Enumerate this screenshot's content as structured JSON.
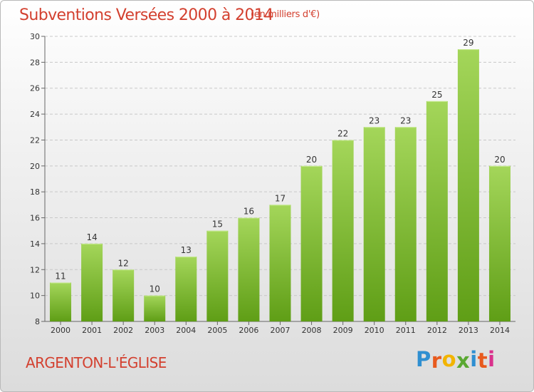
{
  "title": "Subventions Versées 2000 à 2014",
  "unit_note": "(en milliers d'€)",
  "commune": "ARGENTON-L'ÉGLISE",
  "logo": {
    "letters": [
      "P",
      "r",
      "o",
      "x",
      "i",
      "t",
      "i"
    ],
    "colors": [
      "#2f8fd1",
      "#e85a1e",
      "#f2b400",
      "#5aa832",
      "#2f8fd1",
      "#e85a1e",
      "#d9318c"
    ]
  },
  "colors": {
    "title": "#d3402f",
    "bar_top": "#a4d65a",
    "bar_bottom": "#5f9e16",
    "grid": "#c8c8c8"
  },
  "chart_data": {
    "type": "bar",
    "categories": [
      "2000",
      "2001",
      "2002",
      "2003",
      "2004",
      "2005",
      "2006",
      "2007",
      "2008",
      "2009",
      "2010",
      "2011",
      "2012",
      "2013",
      "2014"
    ],
    "values": [
      11,
      14,
      12,
      10,
      13,
      15,
      16,
      17,
      20,
      22,
      23,
      23,
      25,
      29,
      20
    ],
    "ylim": [
      8,
      30
    ],
    "yticks": [
      "8",
      "10",
      "12",
      "14",
      "16",
      "18",
      "20",
      "22",
      "24",
      "26",
      "28",
      "30"
    ],
    "grid": true
  }
}
